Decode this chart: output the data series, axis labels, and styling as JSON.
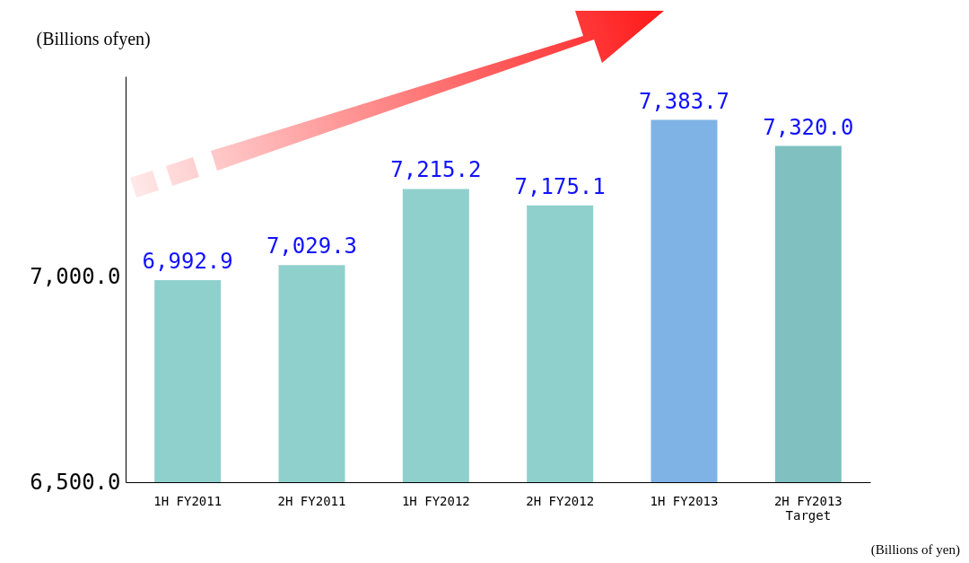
{
  "chart_data": {
    "type": "bar",
    "ylabel": "(Billions ofyen)",
    "categories": [
      "1H FY2011",
      "2H FY2011",
      "1H FY2012",
      "2H FY2012",
      "1H FY2013",
      "2H FY2013\nTarget"
    ],
    "values": [
      6992.9,
      7029.3,
      7215.2,
      7175.1,
      7383.7,
      7320.0
    ],
    "colors": [
      "#8fd0cc",
      "#8fd0cc",
      "#8fd0cc",
      "#8fd0cc",
      "#7fb3e6",
      "#80c0c0"
    ],
    "ylim": [
      6500,
      7490
    ],
    "yticks": [
      {
        "value": 6500,
        "label": "6,500.0"
      },
      {
        "value": 7000,
        "label": "7,000.0"
      }
    ],
    "value_labels": [
      "6,992.9",
      "7,029.3",
      "7,215.2",
      "7,175.1",
      "7,383.7",
      "7,320.0"
    ],
    "grid": false,
    "legend": false,
    "annotations": [
      "(Billions of yen)"
    ]
  }
}
